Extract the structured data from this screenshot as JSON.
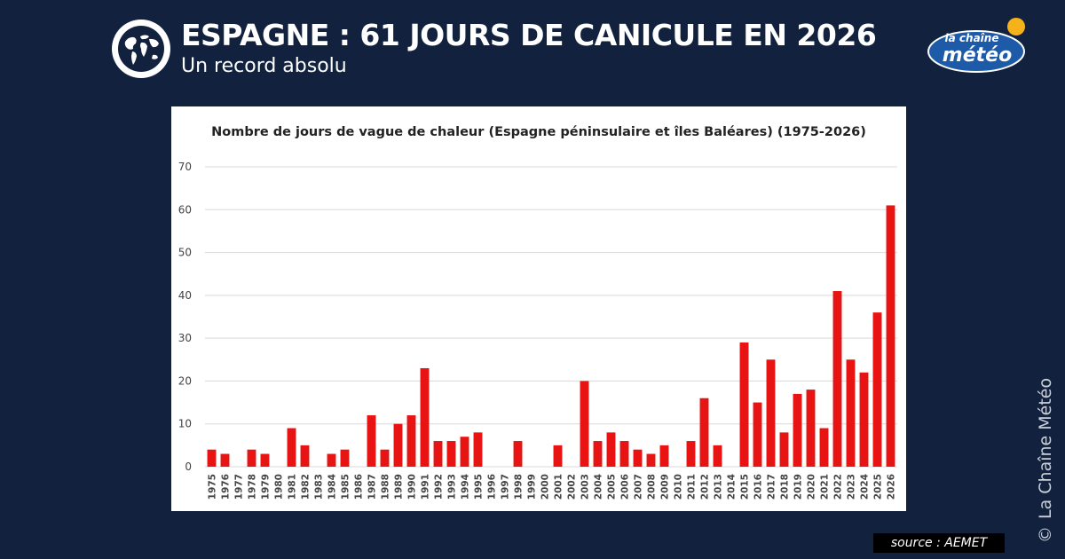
{
  "header": {
    "title": "ESPAGNE : 61 JOURS DE CANICULE EN 2026",
    "subtitle": "Un record absolu",
    "globe_icon": "globe-icon"
  },
  "logo": {
    "line1": "la chaîne",
    "line2": "météo",
    "sun_color": "#f5b21a",
    "blue": "#1d5aa8"
  },
  "colors": {
    "background": "#12223e",
    "bar": "#e81414",
    "grid": "#d9d9d9",
    "tick_text": "#444444"
  },
  "source": "source : AEMET",
  "copyright": {
    "symbol": "©",
    "text": "La Chaîne Météo"
  },
  "chart_data": {
    "type": "bar",
    "title": "Nombre de jours de vague de chaleur (Espagne péninsulaire et îles Baléares) (1975-2026)",
    "xlabel": "",
    "ylabel": "",
    "ylim": [
      0,
      70
    ],
    "yticks": [
      0,
      10,
      20,
      30,
      40,
      50,
      60,
      70
    ],
    "grid": true,
    "legend": false,
    "categories": [
      "1975",
      "1976",
      "1977",
      "1978",
      "1979",
      "1980",
      "1981",
      "1982",
      "1983",
      "1984",
      "1985",
      "1986",
      "1987",
      "1988",
      "1989",
      "1990",
      "1991",
      "1992",
      "1993",
      "1994",
      "1995",
      "1996",
      "1997",
      "1998",
      "1999",
      "2000",
      "2001",
      "2002",
      "2003",
      "2004",
      "2005",
      "2006",
      "2007",
      "2008",
      "2009",
      "2010",
      "2011",
      "2012",
      "2013",
      "2014",
      "2015",
      "2016",
      "2017",
      "2018",
      "2019",
      "2020",
      "2021",
      "2022",
      "2023",
      "2024",
      "2025",
      "2026"
    ],
    "values": [
      4,
      3,
      0,
      4,
      3,
      0,
      9,
      5,
      0,
      3,
      4,
      0,
      12,
      4,
      10,
      12,
      23,
      6,
      6,
      7,
      8,
      0,
      0,
      6,
      0,
      0,
      5,
      0,
      20,
      6,
      8,
      6,
      4,
      3,
      5,
      0,
      6,
      16,
      5,
      0,
      29,
      15,
      25,
      8,
      17,
      18,
      9,
      41,
      25,
      22,
      36,
      61
    ]
  }
}
